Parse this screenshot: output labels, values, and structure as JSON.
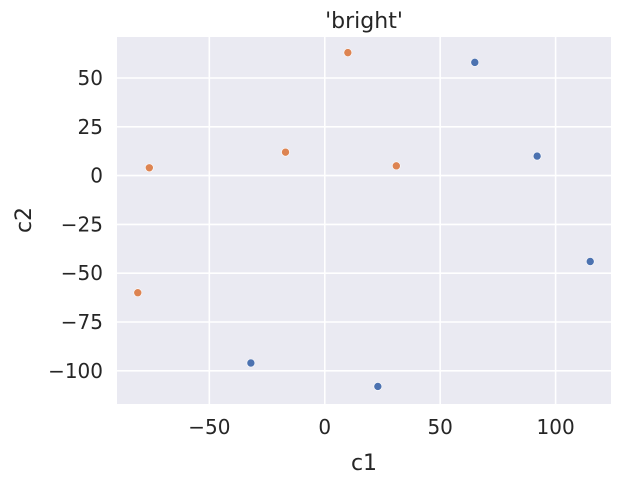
{
  "chart_data": {
    "type": "scatter",
    "title": "'bright'",
    "xlabel": "c1",
    "ylabel": "c2",
    "xlim": [
      -90,
      124
    ],
    "ylim": [
      -117,
      71
    ],
    "xticks": [
      -50,
      0,
      50,
      100
    ],
    "xtick_labels": [
      "−50",
      "0",
      "50",
      "100"
    ],
    "yticks": [
      -100,
      -75,
      -50,
      -25,
      0,
      25,
      50
    ],
    "ytick_labels": [
      "−100",
      "−75",
      "−50",
      "−25",
      "0",
      "25",
      "50"
    ],
    "grid": true,
    "legend": "none",
    "background_color": "#EAEAF2",
    "grid_color": "#FFFFFF",
    "series": [
      {
        "color": "#4C72B0",
        "points": [
          {
            "x": 65,
            "y": 58
          },
          {
            "x": 92,
            "y": 10
          },
          {
            "x": 115,
            "y": -44
          },
          {
            "x": -32,
            "y": -96
          },
          {
            "x": 23,
            "y": -108
          }
        ]
      },
      {
        "color": "#DD8452",
        "points": [
          {
            "x": 10,
            "y": 63
          },
          {
            "x": -17,
            "y": 12
          },
          {
            "x": -76,
            "y": 4
          },
          {
            "x": 31,
            "y": 5
          },
          {
            "x": -81,
            "y": -60
          }
        ]
      }
    ]
  }
}
